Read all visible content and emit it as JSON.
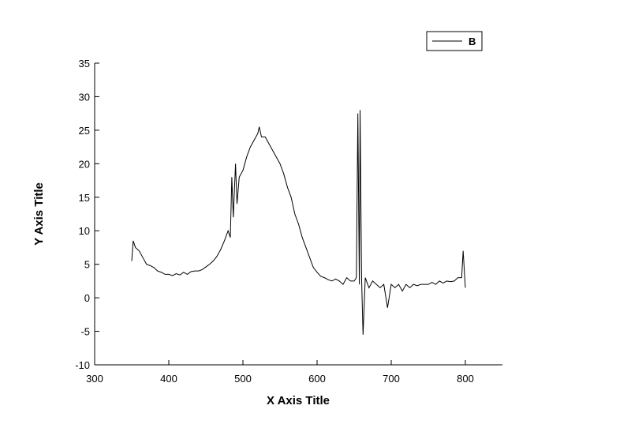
{
  "chart_data": {
    "type": "line",
    "x_label": "X Axis Title",
    "y_label": "Y Axis Title",
    "x": [
      350,
      352,
      355,
      360,
      365,
      370,
      375,
      380,
      385,
      390,
      395,
      400,
      405,
      410,
      415,
      420,
      425,
      430,
      435,
      440,
      445,
      450,
      455,
      460,
      465,
      470,
      475,
      480,
      483,
      485,
      487,
      490,
      492,
      495,
      500,
      505,
      510,
      515,
      520,
      522,
      525,
      530,
      535,
      540,
      545,
      550,
      555,
      560,
      565,
      570,
      575,
      580,
      585,
      590,
      595,
      600,
      605,
      610,
      615,
      620,
      625,
      630,
      635,
      640,
      645,
      650,
      653,
      655,
      657,
      658,
      660,
      662,
      665,
      670,
      675,
      680,
      685,
      690,
      695,
      700,
      705,
      710,
      715,
      720,
      725,
      730,
      735,
      740,
      745,
      750,
      755,
      760,
      765,
      770,
      775,
      780,
      785,
      790,
      795,
      797,
      800
    ],
    "series": [
      {
        "name": "B",
        "color": "#000000",
        "values": [
          5.5,
          8.5,
          7.5,
          7,
          6,
          5,
          4.8,
          4.5,
          4,
          3.8,
          3.5,
          3.5,
          3.3,
          3.6,
          3.4,
          3.8,
          3.5,
          3.9,
          4,
          4,
          4.2,
          4.6,
          5,
          5.5,
          6.2,
          7.2,
          8.5,
          10,
          9,
          18,
          12,
          20,
          14,
          18,
          19,
          21,
          22.5,
          23.5,
          24.5,
          25.5,
          24,
          24,
          23,
          22,
          21,
          20,
          18.5,
          16.5,
          15,
          12.5,
          11,
          9,
          7.5,
          6,
          4.5,
          3.8,
          3.2,
          3,
          2.7,
          2.5,
          2.8,
          2.5,
          2,
          3,
          2.5,
          2.5,
          3,
          27.5,
          2,
          28,
          3,
          -5.5,
          3,
          1.5,
          2.5,
          2,
          1.5,
          2,
          -1.5,
          2,
          1.5,
          2,
          1,
          2,
          1.5,
          2,
          1.8,
          2,
          2,
          2,
          2.3,
          2,
          2.5,
          2.2,
          2.5,
          2.4,
          2.5,
          3,
          3,
          7,
          1.5
        ]
      }
    ],
    "xlim": [
      300,
      850
    ],
    "xticks": [
      300,
      400,
      500,
      600,
      700,
      800
    ],
    "ylim": [
      -10,
      35
    ],
    "yticks": [
      -10,
      -5,
      0,
      5,
      10,
      15,
      20,
      25,
      30,
      35
    ],
    "legend": "top-right"
  }
}
